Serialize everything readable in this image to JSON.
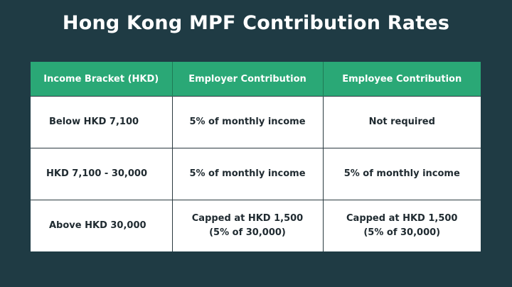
{
  "title": "Hong Kong MPF Contribution Rates",
  "table": {
    "headers": [
      "Income Bracket (HKD)",
      "Employer Contribution",
      "Employee Contribution"
    ],
    "rows": [
      {
        "income": "Below HKD 7,100",
        "employer": [
          "5% of monthly income"
        ],
        "employee": [
          "Not required"
        ]
      },
      {
        "income": "HKD 7,100 - 30,000",
        "employer": [
          "5% of monthly income"
        ],
        "employee": [
          "5% of monthly income"
        ]
      },
      {
        "income": "Above HKD 30,000",
        "employer": [
          "Capped at HKD 1,500",
          "(5% of 30,000)"
        ],
        "employee": [
          "Capped at HKD 1,500",
          "(5% of 30,000)"
        ]
      }
    ]
  },
  "colors": {
    "background": "#1f3b44",
    "header": "#2aa876",
    "title_text": "#ffffff"
  }
}
